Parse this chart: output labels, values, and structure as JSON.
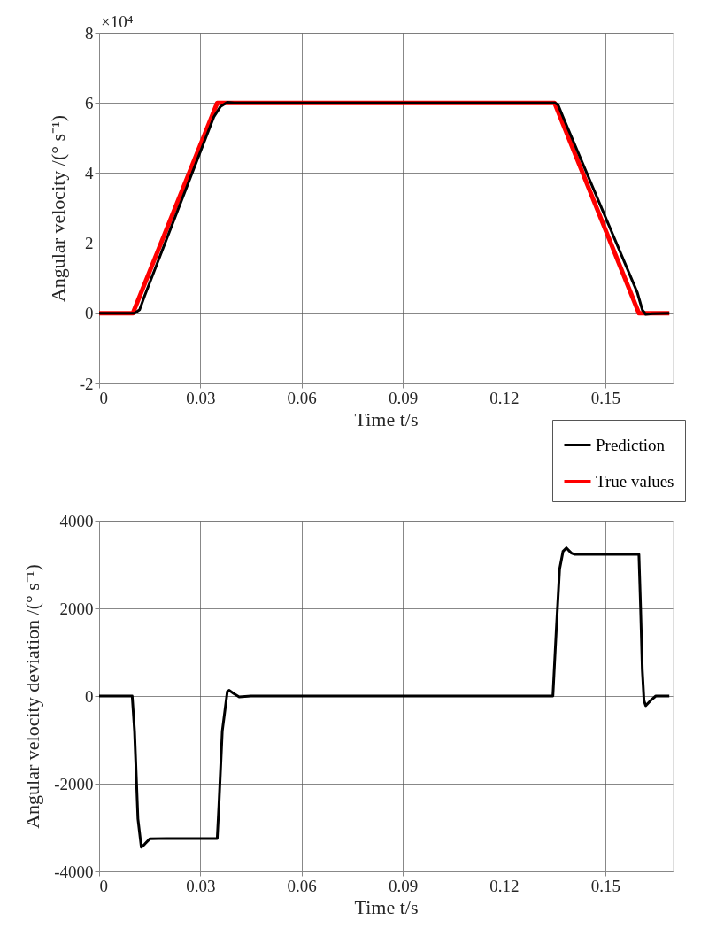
{
  "chart_data": [
    {
      "type": "line",
      "xlabel": "Time t/s",
      "ylabel": "Angular velocity /(° s⁻¹)",
      "annotations": [
        "×10⁴"
      ],
      "xlim": [
        0,
        0.17
      ],
      "xticks": [
        0,
        0.03,
        0.06,
        0.09,
        0.12,
        0.15
      ],
      "ylim": [
        -2,
        8
      ],
      "yticks": [
        -2,
        0,
        2,
        4,
        6,
        8
      ],
      "grid": true,
      "legend": "bottom right",
      "marker": "none",
      "line_style": "solid",
      "series": [
        {
          "name": "Prediction",
          "color": "#000000",
          "x": [
            0,
            0.0105,
            0.012,
            0.0135,
            0.034,
            0.036,
            0.038,
            0.04,
            0.135,
            0.136,
            0.1375,
            0.1595,
            0.161,
            0.162,
            0.164,
            0.169
          ],
          "values": [
            0,
            0,
            0.1,
            0.5,
            5.6,
            5.9,
            6.02,
            6.0,
            6.0,
            5.95,
            5.6,
            0.6,
            0.1,
            -0.03,
            -0.01,
            0
          ]
        },
        {
          "name": "True values",
          "color": "#ff0000",
          "x": [
            0,
            0.01,
            0.035,
            0.135,
            0.16,
            0.169
          ],
          "values": [
            0,
            0,
            6,
            6,
            0,
            0
          ]
        }
      ]
    },
    {
      "type": "line",
      "xlabel": "Time t/s",
      "ylabel": "Angular velocity deviation /(° s⁻¹)",
      "xlim": [
        0,
        0.17
      ],
      "xticks": [
        0,
        0.03,
        0.06,
        0.09,
        0.12,
        0.15
      ],
      "ylim": [
        -4000,
        4000
      ],
      "yticks": [
        -4000,
        -2000,
        0,
        2000,
        4000
      ],
      "grid": true,
      "marker": "none",
      "line_style": "solid",
      "series": [
        {
          "color": "#000000",
          "x": [
            0,
            0.0098,
            0.0105,
            0.0115,
            0.0125,
            0.0135,
            0.015,
            0.02,
            0.035,
            0.0355,
            0.0365,
            0.038,
            0.0385,
            0.04,
            0.0415,
            0.045,
            0.1345,
            0.1355,
            0.1365,
            0.1375,
            0.1385,
            0.14,
            0.141,
            0.16,
            0.1605,
            0.161,
            0.1615,
            0.162,
            0.1635,
            0.165,
            0.169
          ],
          "values": [
            0,
            0,
            -800,
            -2800,
            -3450,
            -3380,
            -3260,
            -3250,
            -3250,
            -2500,
            -800,
            100,
            130,
            50,
            -20,
            0,
            0,
            1500,
            2900,
            3300,
            3380,
            3260,
            3230,
            3230,
            2000,
            600,
            -100,
            -220,
            -100,
            0,
            0
          ]
        }
      ]
    }
  ]
}
